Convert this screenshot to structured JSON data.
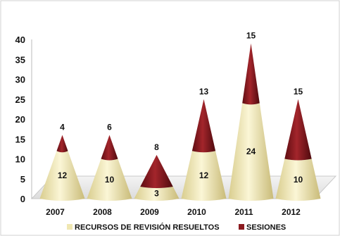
{
  "chart_data": {
    "type": "bar",
    "style": "stacked-3d-cone",
    "categories": [
      "2007",
      "2008",
      "2009",
      "2010",
      "2011",
      "2012"
    ],
    "series": [
      {
        "name": "RECURSOS DE REVISIÓN RESUELTOS",
        "values": [
          12,
          10,
          3,
          12,
          24,
          10
        ],
        "color": "#f0e7b2"
      },
      {
        "name": "SESIONES",
        "values": [
          4,
          6,
          8,
          13,
          15,
          15
        ],
        "color": "#8b1a1f"
      }
    ],
    "y_ticks": [
      "0",
      "5",
      "10",
      "15",
      "20",
      "25",
      "30",
      "35",
      "40"
    ],
    "ylim": [
      0,
      40
    ],
    "title": "",
    "xlabel": "",
    "ylabel": "",
    "grid": false,
    "legend_position": "bottom"
  }
}
